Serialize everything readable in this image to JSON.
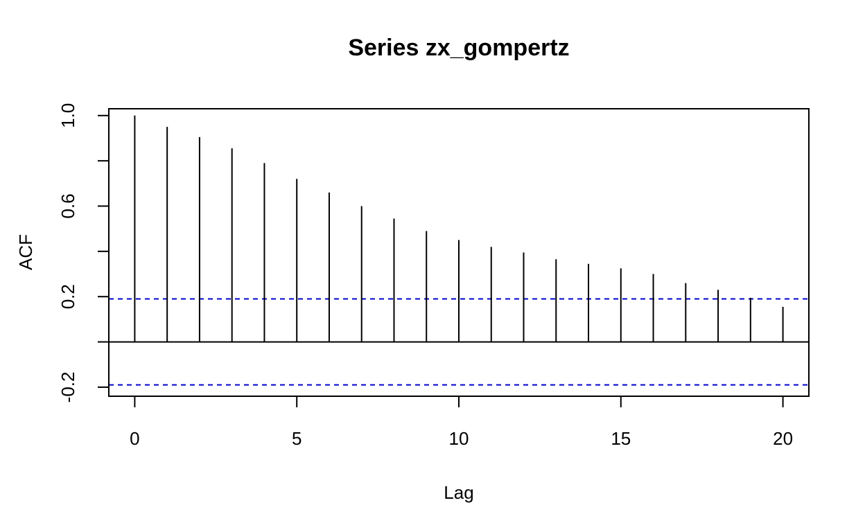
{
  "chart_data": {
    "type": "bar",
    "title": "Series  zx_gompertz",
    "xlabel": "Lag",
    "ylabel": "ACF",
    "x": [
      0,
      1,
      2,
      3,
      4,
      5,
      6,
      7,
      8,
      9,
      10,
      11,
      12,
      13,
      14,
      15,
      16,
      17,
      18,
      19,
      20
    ],
    "values": [
      1.0,
      0.95,
      0.905,
      0.855,
      0.79,
      0.72,
      0.66,
      0.6,
      0.545,
      0.49,
      0.45,
      0.42,
      0.395,
      0.365,
      0.345,
      0.325,
      0.3,
      0.26,
      0.23,
      0.195,
      0.155
    ],
    "xlim": [
      -0.8,
      20.8
    ],
    "ylim": [
      -0.24,
      1.03
    ],
    "x_ticks": [
      0,
      5,
      10,
      15,
      20
    ],
    "x_tick_labels": [
      "0",
      "5",
      "10",
      "15",
      "20"
    ],
    "y_ticks": [
      -0.2,
      0.0,
      0.2,
      0.4,
      0.6,
      0.8,
      1.0
    ],
    "y_tick_labels": [
      "-0.2",
      "",
      "0.2",
      "",
      "0.6",
      "",
      "1.0"
    ],
    "confidence_bound": 0.19,
    "zero_line": 0,
    "bar_color": "#000000",
    "bound_color": "#0000cc",
    "grid": false
  }
}
